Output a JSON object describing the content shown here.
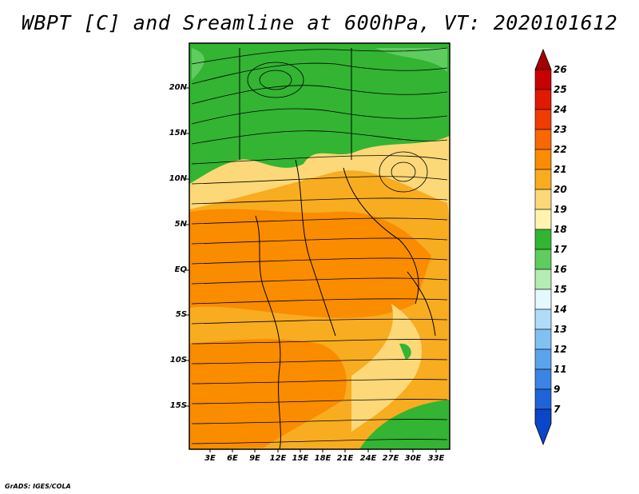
{
  "title": "WBPT [C] and Sreamline at 600hPa, VT: 2020101612",
  "lat_labels": [
    "20N",
    "15N",
    "10N",
    "5N",
    "EQ",
    "5S",
    "10S",
    "15S"
  ],
  "lon_labels": [
    "3E",
    "6E",
    "9E",
    "12E",
    "15E",
    "18E",
    "21E",
    "24E",
    "27E",
    "30E",
    "33E"
  ],
  "colorbar": {
    "levels": [
      "26",
      "25",
      "24",
      "23",
      "22",
      "21",
      "20",
      "19",
      "18",
      "17",
      "16",
      "15",
      "14",
      "13",
      "12",
      "11",
      "9",
      "7"
    ],
    "colors": [
      "#a50000",
      "#c80000",
      "#e01a00",
      "#f03c00",
      "#f86800",
      "#fa8c00",
      "#f8ac20",
      "#fcd878",
      "#fff3b0",
      "#33b433",
      "#5ecc5e",
      "#b4ecb4",
      "#e6f8ff",
      "#b0dcfa",
      "#82c0f2",
      "#5aa4ec",
      "#3a84e2",
      "#1e64d8",
      "#0a46c8"
    ]
  },
  "credit": "GrADS: IGES/COLA"
}
